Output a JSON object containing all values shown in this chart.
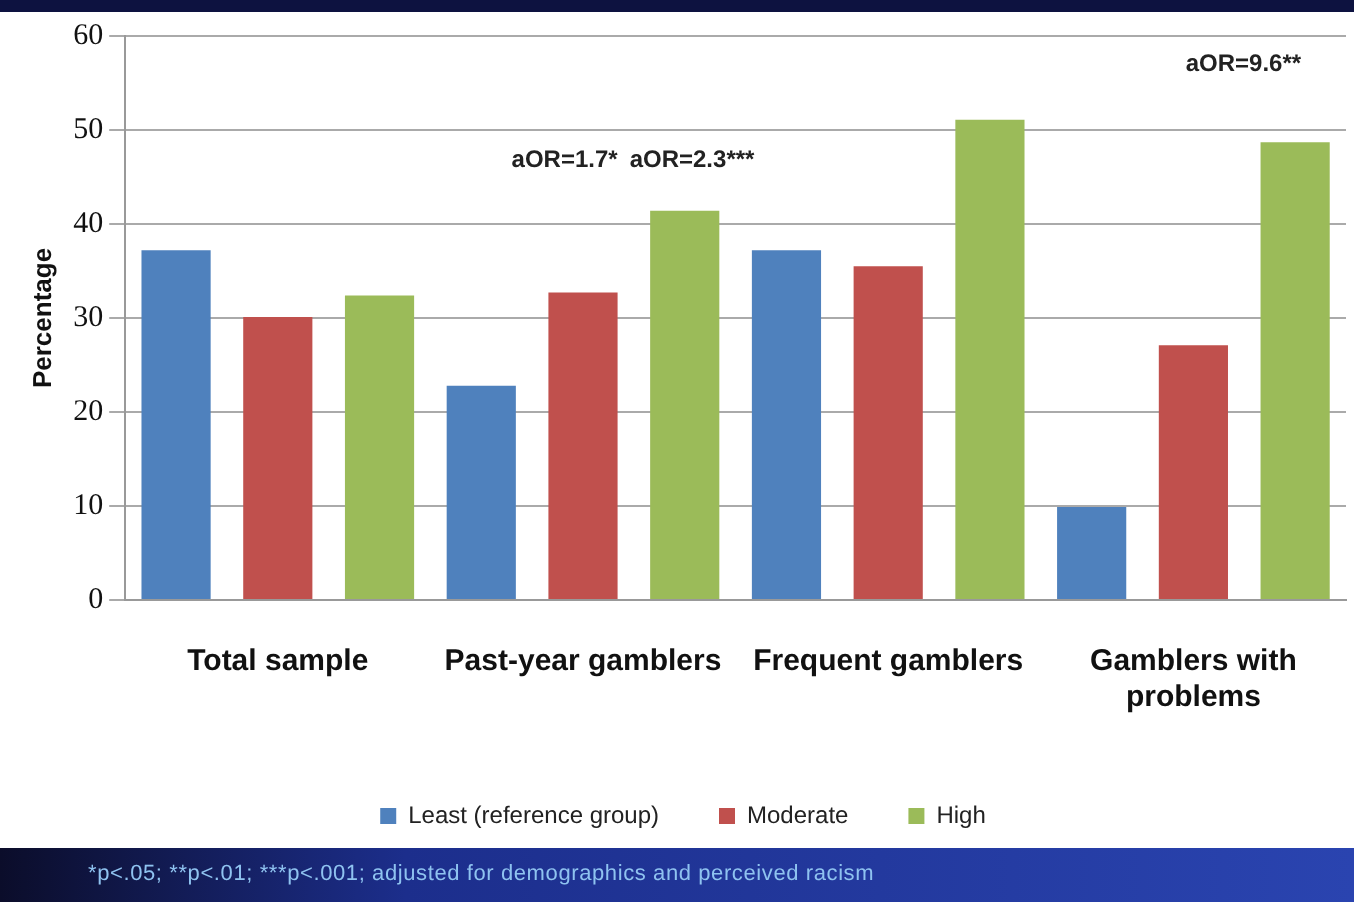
{
  "chart_data": {
    "type": "bar",
    "ylabel": "Percentage",
    "categories": [
      "Total sample",
      "Past-year gamblers",
      "Frequent gamblers",
      "Gamblers with problems"
    ],
    "series": [
      {
        "name": "Least (reference group)",
        "color": "#4f81bd",
        "values": [
          37.2,
          22.8,
          37.2,
          9.9
        ]
      },
      {
        "name": "Moderate",
        "color": "#c0504d",
        "values": [
          30.1,
          32.7,
          35.5,
          27.1
        ]
      },
      {
        "name": "High",
        "color": "#9bbb59",
        "values": [
          32.4,
          41.4,
          51.1,
          48.7
        ]
      }
    ],
    "ylim": [
      0,
      60
    ],
    "yticks": [
      0,
      10,
      20,
      30,
      40,
      50,
      60
    ],
    "grid": "y",
    "legend": "bottom",
    "annotations": [
      "aOR=1.7*",
      "aOR=2.3***",
      "aOR=9.6**",
      "*p<.05; **p<.01; ***p<.001; adjusted for demographics and perceived racism"
    ]
  }
}
